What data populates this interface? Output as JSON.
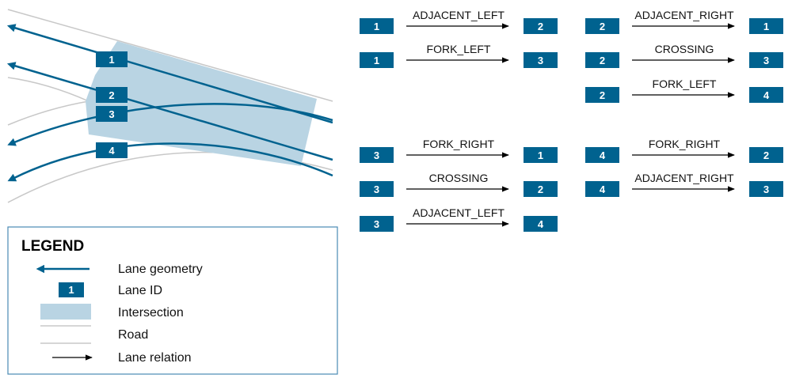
{
  "colors": {
    "lane": "#00628f",
    "lane_id_box": "#00628f",
    "intersection": "#b9d4e3",
    "road": "#c8c8c8",
    "relation": "#000000"
  },
  "lane_ids": [
    "1",
    "2",
    "3",
    "4"
  ],
  "relations": [
    {
      "from": "1",
      "label": "ADJACENT_LEFT",
      "to": "2"
    },
    {
      "from": "1",
      "label": "FORK_LEFT",
      "to": "3"
    },
    {
      "from": "2",
      "label": "ADJACENT_RIGHT",
      "to": "1"
    },
    {
      "from": "2",
      "label": "CROSSING",
      "to": "3"
    },
    {
      "from": "2",
      "label": "FORK_LEFT",
      "to": "4"
    },
    {
      "from": "3",
      "label": "FORK_RIGHT",
      "to": "1"
    },
    {
      "from": "3",
      "label": "CROSSING",
      "to": "2"
    },
    {
      "from": "3",
      "label": "ADJACENT_LEFT",
      "to": "4"
    },
    {
      "from": "4",
      "label": "FORK_RIGHT",
      "to": "2"
    },
    {
      "from": "4",
      "label": "ADJACENT_RIGHT",
      "to": "3"
    }
  ],
  "legend": {
    "title": "LEGEND",
    "sample_id": "1",
    "items": {
      "lane_geometry": "Lane geometry",
      "lane_id": "Lane ID",
      "intersection": "Intersection",
      "road": "Road",
      "lane_relation": "Lane relation"
    }
  }
}
